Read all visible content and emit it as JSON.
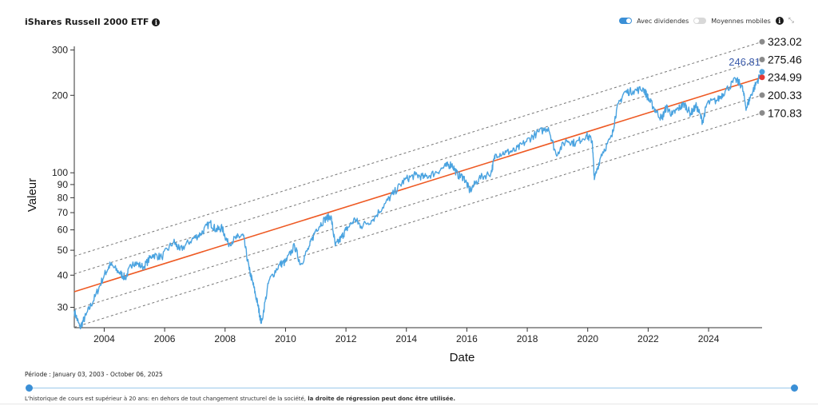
{
  "header": {
    "title": "iShares Russell 2000 ETF",
    "info_icon": "info-icon",
    "toggle_dividends_label": "Avec dividendes",
    "toggle_dividends_on": true,
    "toggle_ma_label": "Moyennes mobiles",
    "toggle_ma_on": false,
    "expand_icon": "expand-icon"
  },
  "footer": {
    "period": "Période : January 03, 2003 - October 06, 2025",
    "note_prefix": "L'historique de cours est supérieur à 20 ans: en dehors de tout changement structurel de la société,",
    "note_bold": "la droite de régression peut donc être utilisée."
  },
  "colors": {
    "price": "#4aa3e0",
    "regression": "#ee5a24",
    "channel": "#777777",
    "current_label": "#3b5bab",
    "slider": "#3a8fd6"
  },
  "chart_data": {
    "type": "line",
    "xlabel": "Date",
    "ylabel": "Valeur",
    "y_scale": "log",
    "xlim": [
      2003.01,
      2025.77
    ],
    "ylim": [
      25,
      310
    ],
    "x_ticks": [
      "2004",
      "2006",
      "2008",
      "2010",
      "2012",
      "2014",
      "2016",
      "2018",
      "2020",
      "2022",
      "2024"
    ],
    "y_ticks": [
      30,
      40,
      50,
      60,
      70,
      80,
      90,
      100,
      200,
      300
    ],
    "grid": false,
    "current_value": 246.81,
    "regression": {
      "start": [
        2003.01,
        34.5
      ],
      "end": [
        2025.77,
        234.99
      ]
    },
    "channel_end_values": [
      323.02,
      275.46,
      234.99,
      200.33,
      170.83
    ],
    "channel_labels": [
      "323.02",
      "275.46",
      "234.99",
      "200.33",
      "170.83"
    ],
    "series": [
      {
        "values": [
          {
            "x": 2003.01,
            "y": 29
          },
          {
            "x": 2003.2,
            "y": 25
          },
          {
            "x": 2003.4,
            "y": 28
          },
          {
            "x": 2003.7,
            "y": 33
          },
          {
            "x": 2004.0,
            "y": 40
          },
          {
            "x": 2004.2,
            "y": 44
          },
          {
            "x": 2004.5,
            "y": 41
          },
          {
            "x": 2004.7,
            "y": 39
          },
          {
            "x": 2004.95,
            "y": 45
          },
          {
            "x": 2005.3,
            "y": 43
          },
          {
            "x": 2005.6,
            "y": 48
          },
          {
            "x": 2005.9,
            "y": 47
          },
          {
            "x": 2006.3,
            "y": 54
          },
          {
            "x": 2006.5,
            "y": 50
          },
          {
            "x": 2006.9,
            "y": 55
          },
          {
            "x": 2007.2,
            "y": 58
          },
          {
            "x": 2007.5,
            "y": 64
          },
          {
            "x": 2007.7,
            "y": 60
          },
          {
            "x": 2007.9,
            "y": 61
          },
          {
            "x": 2008.1,
            "y": 53
          },
          {
            "x": 2008.4,
            "y": 56
          },
          {
            "x": 2008.6,
            "y": 57
          },
          {
            "x": 2008.8,
            "y": 42
          },
          {
            "x": 2008.95,
            "y": 36
          },
          {
            "x": 2009.1,
            "y": 30
          },
          {
            "x": 2009.2,
            "y": 26
          },
          {
            "x": 2009.45,
            "y": 38
          },
          {
            "x": 2009.8,
            "y": 44
          },
          {
            "x": 2010.0,
            "y": 45
          },
          {
            "x": 2010.3,
            "y": 52
          },
          {
            "x": 2010.5,
            "y": 44
          },
          {
            "x": 2010.8,
            "y": 52
          },
          {
            "x": 2011.0,
            "y": 60
          },
          {
            "x": 2011.3,
            "y": 66
          },
          {
            "x": 2011.5,
            "y": 68
          },
          {
            "x": 2011.65,
            "y": 52
          },
          {
            "x": 2011.85,
            "y": 56
          },
          {
            "x": 2012.0,
            "y": 60
          },
          {
            "x": 2012.3,
            "y": 66
          },
          {
            "x": 2012.5,
            "y": 62
          },
          {
            "x": 2012.9,
            "y": 66
          },
          {
            "x": 2013.3,
            "y": 76
          },
          {
            "x": 2013.6,
            "y": 84
          },
          {
            "x": 2013.95,
            "y": 94
          },
          {
            "x": 2014.3,
            "y": 98
          },
          {
            "x": 2014.6,
            "y": 96
          },
          {
            "x": 2014.95,
            "y": 100
          },
          {
            "x": 2015.3,
            "y": 106
          },
          {
            "x": 2015.5,
            "y": 108
          },
          {
            "x": 2015.7,
            "y": 98
          },
          {
            "x": 2015.9,
            "y": 96
          },
          {
            "x": 2016.1,
            "y": 85
          },
          {
            "x": 2016.4,
            "y": 95
          },
          {
            "x": 2016.8,
            "y": 100
          },
          {
            "x": 2016.95,
            "y": 118
          },
          {
            "x": 2017.3,
            "y": 120
          },
          {
            "x": 2017.6,
            "y": 122
          },
          {
            "x": 2017.95,
            "y": 132
          },
          {
            "x": 2018.3,
            "y": 142
          },
          {
            "x": 2018.7,
            "y": 150
          },
          {
            "x": 2018.95,
            "y": 118
          },
          {
            "x": 2019.3,
            "y": 134
          },
          {
            "x": 2019.6,
            "y": 130
          },
          {
            "x": 2019.95,
            "y": 140
          },
          {
            "x": 2020.15,
            "y": 133
          },
          {
            "x": 2020.22,
            "y": 94
          },
          {
            "x": 2020.45,
            "y": 118
          },
          {
            "x": 2020.8,
            "y": 138
          },
          {
            "x": 2020.95,
            "y": 175
          },
          {
            "x": 2021.2,
            "y": 205
          },
          {
            "x": 2021.5,
            "y": 208
          },
          {
            "x": 2021.85,
            "y": 212
          },
          {
            "x": 2022.0,
            "y": 195
          },
          {
            "x": 2022.2,
            "y": 178
          },
          {
            "x": 2022.45,
            "y": 162
          },
          {
            "x": 2022.6,
            "y": 180
          },
          {
            "x": 2022.8,
            "y": 168
          },
          {
            "x": 2023.0,
            "y": 178
          },
          {
            "x": 2023.2,
            "y": 185
          },
          {
            "x": 2023.4,
            "y": 170
          },
          {
            "x": 2023.6,
            "y": 182
          },
          {
            "x": 2023.8,
            "y": 158
          },
          {
            "x": 2023.95,
            "y": 186
          },
          {
            "x": 2024.3,
            "y": 192
          },
          {
            "x": 2024.55,
            "y": 208
          },
          {
            "x": 2024.9,
            "y": 230
          },
          {
            "x": 2025.1,
            "y": 218
          },
          {
            "x": 2025.25,
            "y": 178
          },
          {
            "x": 2025.4,
            "y": 200
          },
          {
            "x": 2025.6,
            "y": 226
          },
          {
            "x": 2025.77,
            "y": 246.81
          }
        ]
      }
    ]
  }
}
